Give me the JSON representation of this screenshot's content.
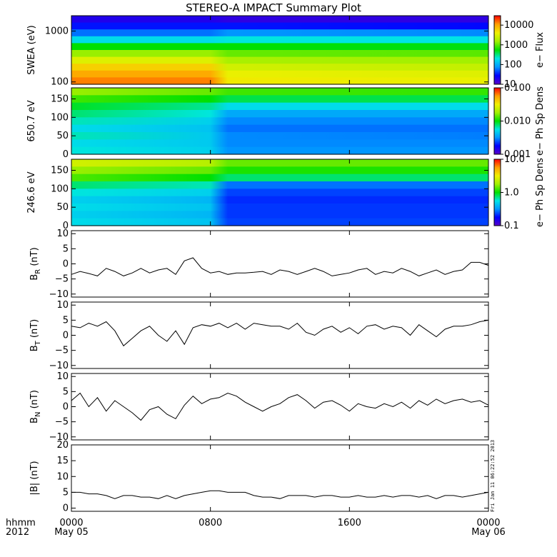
{
  "title": "STEREO-A IMPACT Summary Plot",
  "stamp": "Fri Jan 11 06:22:52 2013",
  "x_axis": {
    "row_label_1": "hhmm",
    "row_label_2": "2012",
    "ticks": [
      {
        "t": 0,
        "line1": "0000",
        "line2": "May 05"
      },
      {
        "t": 8,
        "line1": "0800",
        "line2": ""
      },
      {
        "t": 16,
        "line1": "1600",
        "line2": ""
      },
      {
        "t": 24,
        "line1": "0000",
        "line2": "May 06"
      }
    ],
    "range_hours": [
      0,
      24
    ]
  },
  "colors": {
    "rainbow": [
      "#5a00c8",
      "#0000ff",
      "#0096ff",
      "#00e6e6",
      "#00e000",
      "#a0f000",
      "#f0f000",
      "#ffa000",
      "#ff0000"
    ]
  },
  "chart_data": [
    {
      "id": "swea",
      "type": "heatmap",
      "ylabel": "SWEA (eV)",
      "yscale": "log",
      "ylim": [
        90,
        2000
      ],
      "yticks": [
        {
          "v": 100,
          "label": "100"
        },
        {
          "v": 1000,
          "label": "1000"
        }
      ],
      "colorbar": {
        "label": "e− Flux",
        "scale": "log",
        "range": [
          10,
          30000
        ],
        "ticks": [
          {
            "v": 10,
            "label": "10"
          },
          {
            "v": 100,
            "label": "100"
          },
          {
            "v": 1000,
            "label": "1000"
          },
          {
            "v": 10000,
            "label": "10000"
          }
        ]
      },
      "energy_bins_eV": [
        2000,
        1500,
        1000,
        700,
        500,
        350,
        250,
        180,
        130,
        100
      ],
      "time_profiles": [
        {
          "t": 0,
          "level": [
            0.08,
            0.14,
            0.22,
            0.36,
            0.5,
            0.62,
            0.72,
            0.8,
            0.86,
            0.9
          ]
        },
        {
          "t": 8,
          "level": [
            0.08,
            0.14,
            0.22,
            0.36,
            0.5,
            0.62,
            0.72,
            0.8,
            0.86,
            0.9
          ]
        },
        {
          "t": 9,
          "level": [
            0.06,
            0.14,
            0.25,
            0.38,
            0.5,
            0.58,
            0.64,
            0.7,
            0.74,
            0.76
          ]
        },
        {
          "t": 24,
          "level": [
            0.06,
            0.13,
            0.24,
            0.37,
            0.49,
            0.57,
            0.63,
            0.68,
            0.72,
            0.74
          ]
        }
      ]
    },
    {
      "id": "pad650",
      "type": "heatmap",
      "ylabel": "650.7 eV",
      "ylim": [
        0,
        180
      ],
      "yticks": [
        {
          "v": 0,
          "label": "0"
        },
        {
          "v": 50,
          "label": "50"
        },
        {
          "v": 100,
          "label": "100"
        },
        {
          "v": 150,
          "label": "150"
        }
      ],
      "colorbar": {
        "label": "e− Ph Sp Dens",
        "scale": "log",
        "range": [
          0.001,
          0.1
        ],
        "ticks": [
          {
            "v": 0.001,
            "label": "0.001"
          },
          {
            "v": 0.01,
            "label": "0.010"
          },
          {
            "v": 0.1,
            "label": "0.100"
          }
        ]
      },
      "pitch_bins_deg": [
        175,
        155,
        135,
        115,
        95,
        75,
        55,
        35,
        15
      ],
      "time_profiles": [
        {
          "t": 0,
          "level": [
            0.62,
            0.55,
            0.48,
            0.44,
            0.4,
            0.36,
            0.4,
            0.36,
            0.38
          ]
        },
        {
          "t": 8,
          "level": [
            0.58,
            0.5,
            0.42,
            0.38,
            0.34,
            0.32,
            0.33,
            0.33,
            0.34
          ]
        },
        {
          "t": 9,
          "level": [
            0.55,
            0.46,
            0.36,
            0.28,
            0.24,
            0.22,
            0.24,
            0.24,
            0.25
          ]
        },
        {
          "t": 24,
          "level": [
            0.54,
            0.46,
            0.36,
            0.28,
            0.24,
            0.22,
            0.23,
            0.24,
            0.25
          ]
        }
      ]
    },
    {
      "id": "pad246",
      "type": "heatmap",
      "ylabel": "246.6 eV",
      "ylim": [
        0,
        180
      ],
      "yticks": [
        {
          "v": 0,
          "label": "0"
        },
        {
          "v": 50,
          "label": "50"
        },
        {
          "v": 100,
          "label": "100"
        },
        {
          "v": 150,
          "label": "150"
        }
      ],
      "colorbar": {
        "label": "e− Ph Sp Dens",
        "scale": "log",
        "range": [
          0.1,
          10
        ],
        "ticks": [
          {
            "v": 0.1,
            "label": "0.1"
          },
          {
            "v": 1,
            "label": "1.0"
          },
          {
            "v": 10,
            "label": "10.0"
          }
        ]
      },
      "pitch_bins_deg": [
        175,
        155,
        135,
        115,
        95,
        75,
        55,
        35,
        15
      ],
      "time_profiles": [
        {
          "t": 0,
          "level": [
            0.7,
            0.62,
            0.56,
            0.44,
            0.38,
            0.34,
            0.36,
            0.34,
            0.36
          ]
        },
        {
          "t": 8,
          "level": [
            0.66,
            0.58,
            0.5,
            0.4,
            0.34,
            0.3,
            0.32,
            0.3,
            0.32
          ]
        },
        {
          "t": 9,
          "level": [
            0.58,
            0.52,
            0.44,
            0.22,
            0.18,
            0.16,
            0.17,
            0.17,
            0.18
          ]
        },
        {
          "t": 24,
          "level": [
            0.58,
            0.52,
            0.44,
            0.22,
            0.18,
            0.16,
            0.17,
            0.17,
            0.18
          ]
        }
      ]
    },
    {
      "id": "br",
      "type": "line",
      "ylabel": "B",
      "ysub": "R",
      "yunit": " (nT)",
      "ylim": [
        -11,
        11
      ],
      "yticks": [
        {
          "v": -10,
          "label": "−10"
        },
        {
          "v": -5,
          "label": "−5"
        },
        {
          "v": 0,
          "label": "0"
        },
        {
          "v": 5,
          "label": "5"
        },
        {
          "v": 10,
          "label": "10"
        }
      ],
      "x": [
        0,
        0.5,
        1,
        1.5,
        2,
        2.5,
        3,
        3.5,
        4,
        4.5,
        5,
        5.5,
        6,
        6.5,
        7,
        7.5,
        8,
        8.5,
        9,
        9.5,
        10,
        10.5,
        11,
        11.5,
        12,
        12.5,
        13,
        13.5,
        14,
        14.5,
        15,
        15.5,
        16,
        16.5,
        17,
        17.5,
        18,
        18.5,
        19,
        19.5,
        20,
        20.5,
        21,
        21.5,
        22,
        22.5,
        23,
        23.5,
        24
      ],
      "y": [
        -3.5,
        -2.5,
        -3.2,
        -4,
        -1.5,
        -2.5,
        -4,
        -3,
        -1.5,
        -3,
        -2,
        -1.5,
        -3.5,
        1,
        2,
        -1.5,
        -3,
        -2.5,
        -3.5,
        -3,
        -3,
        -2.8,
        -2.5,
        -3.5,
        -2,
        -2.5,
        -3.5,
        -2.5,
        -1.5,
        -2.5,
        -4,
        -3.5,
        -3,
        -2,
        -1.5,
        -3.5,
        -2.5,
        -3,
        -1.5,
        -2.5,
        -4,
        -3,
        -2,
        -3.5,
        -2.5,
        -2,
        0.5,
        0.5,
        -0.5
      ]
    },
    {
      "id": "bt",
      "type": "line",
      "ylabel": "B",
      "ysub": "T",
      "yunit": " (nT)",
      "ylim": [
        -11,
        11
      ],
      "yticks": [
        {
          "v": -10,
          "label": "−10"
        },
        {
          "v": -5,
          "label": "−5"
        },
        {
          "v": 0,
          "label": "0"
        },
        {
          "v": 5,
          "label": "5"
        },
        {
          "v": 10,
          "label": "10"
        }
      ],
      "x": [
        0,
        0.5,
        1,
        1.5,
        2,
        2.5,
        3,
        3.5,
        4,
        4.5,
        5,
        5.5,
        6,
        6.5,
        7,
        7.5,
        8,
        8.5,
        9,
        9.5,
        10,
        10.5,
        11,
        11.5,
        12,
        12.5,
        13,
        13.5,
        14,
        14.5,
        15,
        15.5,
        16,
        16.5,
        17,
        17.5,
        18,
        18.5,
        19,
        19.5,
        20,
        20.5,
        21,
        21.5,
        22,
        22.5,
        23,
        23.5,
        24
      ],
      "y": [
        3,
        2.5,
        4,
        3,
        4.5,
        1.5,
        -3.5,
        -1,
        1.5,
        3,
        0,
        -2,
        1.5,
        -3,
        2.5,
        3.5,
        3,
        4,
        2.5,
        4,
        2,
        4,
        3.5,
        3,
        3,
        2,
        4,
        1,
        0,
        2,
        3,
        1,
        2.5,
        0.5,
        3,
        3.5,
        2,
        3,
        2.5,
        0,
        3.5,
        1.5,
        -0.5,
        2,
        3,
        3,
        3.5,
        4.5,
        5
      ]
    },
    {
      "id": "bn",
      "type": "line",
      "ylabel": "B",
      "ysub": "N",
      "yunit": " (nT)",
      "ylim": [
        -11,
        11
      ],
      "yticks": [
        {
          "v": -10,
          "label": "−10"
        },
        {
          "v": -5,
          "label": "−5"
        },
        {
          "v": 0,
          "label": "0"
        },
        {
          "v": 5,
          "label": "5"
        },
        {
          "v": 10,
          "label": "10"
        }
      ],
      "x": [
        0,
        0.5,
        1,
        1.5,
        2,
        2.5,
        3,
        3.5,
        4,
        4.5,
        5,
        5.5,
        6,
        6.5,
        7,
        7.5,
        8,
        8.5,
        9,
        9.5,
        10,
        10.5,
        11,
        11.5,
        12,
        12.5,
        13,
        13.5,
        14,
        14.5,
        15,
        15.5,
        16,
        16.5,
        17,
        17.5,
        18,
        18.5,
        19,
        19.5,
        20,
        20.5,
        21,
        21.5,
        22,
        22.5,
        23,
        23.5,
        24
      ],
      "y": [
        2,
        4.5,
        0,
        3,
        -1.5,
        2,
        0,
        -2,
        -4.5,
        -1,
        0,
        -2.5,
        -4,
        0.5,
        3.5,
        1,
        2.5,
        3,
        4.5,
        3.5,
        1.5,
        0,
        -1.5,
        0,
        1,
        3,
        4,
        2,
        -0.5,
        1.5,
        2,
        0.5,
        -1.5,
        1,
        0,
        -0.5,
        1,
        0,
        1.5,
        -0.5,
        2,
        0.5,
        2.5,
        1,
        2,
        2.5,
        1.5,
        2,
        0.5
      ]
    },
    {
      "id": "bmag",
      "type": "line",
      "ylabel": "|B| (nT)",
      "ylim": [
        -1,
        20
      ],
      "yticks": [
        {
          "v": 0,
          "label": "0"
        },
        {
          "v": 5,
          "label": "5"
        },
        {
          "v": 10,
          "label": "10"
        },
        {
          "v": 15,
          "label": "15"
        },
        {
          "v": 20,
          "label": "20"
        }
      ],
      "x": [
        0,
        0.5,
        1,
        1.5,
        2,
        2.5,
        3,
        3.5,
        4,
        4.5,
        5,
        5.5,
        6,
        6.5,
        7,
        7.5,
        8,
        8.5,
        9,
        9.5,
        10,
        10.5,
        11,
        11.5,
        12,
        12.5,
        13,
        13.5,
        14,
        14.5,
        15,
        15.5,
        16,
        16.5,
        17,
        17.5,
        18,
        18.5,
        19,
        19.5,
        20,
        20.5,
        21,
        21.5,
        22,
        22.5,
        23,
        23.5,
        24
      ],
      "y": [
        5,
        5,
        4.5,
        4.5,
        4,
        3,
        4,
        4,
        3.5,
        3.5,
        3,
        4,
        3,
        4,
        4.5,
        5,
        5.5,
        5.5,
        5,
        5,
        5,
        4,
        3.5,
        3.5,
        3,
        4,
        4,
        4,
        3.5,
        4,
        4,
        3.5,
        3.5,
        4,
        3.5,
        3.5,
        4,
        3.5,
        4,
        4,
        3.5,
        4,
        3,
        4,
        4,
        3.5,
        4,
        4.5,
        5
      ]
    }
  ]
}
